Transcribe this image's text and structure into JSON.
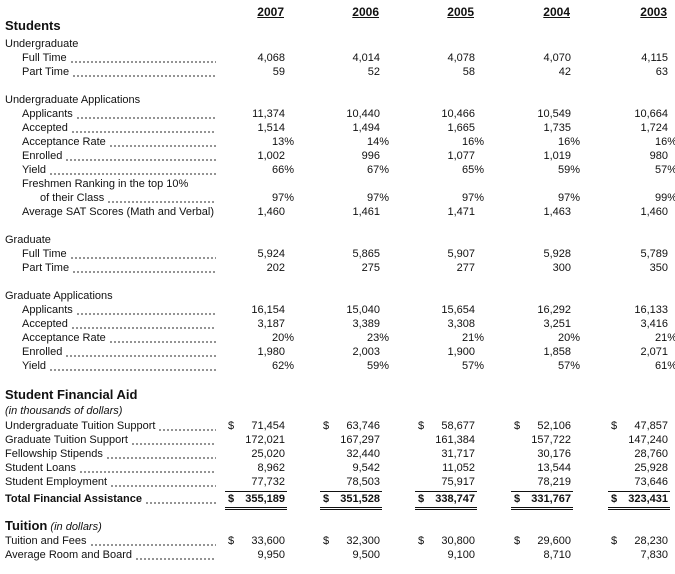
{
  "years": [
    "2007",
    "2006",
    "2005",
    "2004",
    "2003"
  ],
  "sections": [
    {
      "title": "Students",
      "groups": [
        {
          "title": "Undergraduate",
          "rows": [
            {
              "label": "Full Time",
              "values": [
                "4,068",
                "4,014",
                "4,078",
                "4,070",
                "4,115"
              ]
            },
            {
              "label": "Part Time",
              "values": [
                "59",
                "52",
                "58",
                "42",
                "63"
              ]
            }
          ]
        },
        {
          "title": "Undergraduate Applications",
          "rows": [
            {
              "label": "Applicants",
              "values": [
                "11,374",
                "10,440",
                "10,466",
                "10,549",
                "10,664"
              ]
            },
            {
              "label": "Accepted",
              "values": [
                "1,514",
                "1,494",
                "1,665",
                "1,735",
                "1,724"
              ]
            },
            {
              "label": "Acceptance Rate",
              "values": [
                "13%",
                "14%",
                "16%",
                "16%",
                "16%"
              ]
            },
            {
              "label": "Enrolled",
              "values": [
                "1,002",
                "996",
                "1,077",
                "1,019",
                "980"
              ]
            },
            {
              "label": "Yield",
              "values": [
                "66%",
                "67%",
                "65%",
                "59%",
                "57%"
              ]
            },
            {
              "label": "Freshmen Ranking in the top 10%",
              "sublabel": "of their Class",
              "values": [
                "97%",
                "97%",
                "97%",
                "97%",
                "99%"
              ]
            },
            {
              "label": "Average SAT Scores (Math and Verbal)",
              "values": [
                "1,460",
                "1,461",
                "1,471",
                "1,463",
                "1,460"
              ]
            }
          ]
        },
        {
          "title": "Graduate",
          "rows": [
            {
              "label": "Full Time",
              "values": [
                "5,924",
                "5,865",
                "5,907",
                "5,928",
                "5,789"
              ]
            },
            {
              "label": "Part Time",
              "values": [
                "202",
                "275",
                "277",
                "300",
                "350"
              ]
            }
          ]
        },
        {
          "title": "Graduate Applications",
          "rows": [
            {
              "label": "Applicants",
              "values": [
                "16,154",
                "15,040",
                "15,654",
                "16,292",
                "16,133"
              ]
            },
            {
              "label": "Accepted",
              "values": [
                "3,187",
                "3,389",
                "3,308",
                "3,251",
                "3,416"
              ]
            },
            {
              "label": "Acceptance Rate",
              "values": [
                "20%",
                "23%",
                "21%",
                "20%",
                "21%"
              ]
            },
            {
              "label": "Enrolled",
              "values": [
                "1,980",
                "2,003",
                "1,900",
                "1,858",
                "2,071"
              ]
            },
            {
              "label": "Yield",
              "values": [
                "62%",
                "59%",
                "57%",
                "57%",
                "61%"
              ]
            }
          ]
        }
      ]
    },
    {
      "title": "Student Financial Aid",
      "subtitle": "(in thousands of dollars)",
      "rows": [
        {
          "label": "Undergraduate Tuition Support",
          "currency": "$",
          "values": [
            "71,454",
            "63,746",
            "58,677",
            "52,106",
            "47,857"
          ]
        },
        {
          "label": "Graduate Tuition Support",
          "values": [
            "172,021",
            "167,297",
            "161,384",
            "157,722",
            "147,240"
          ]
        },
        {
          "label": "Fellowship Stipends",
          "values": [
            "25,020",
            "32,440",
            "31,717",
            "30,176",
            "28,760"
          ]
        },
        {
          "label": "Student Loans",
          "values": [
            "8,962",
            "9,542",
            "11,052",
            "13,544",
            "25,928"
          ]
        },
        {
          "label": "Student Employment",
          "values": [
            "77,732",
            "78,503",
            "75,917",
            "78,219",
            "73,646"
          ]
        }
      ],
      "total": {
        "label": "Total Financial Assistance",
        "currency": "$",
        "values": [
          "355,189",
          "351,528",
          "338,747",
          "331,767",
          "323,431"
        ]
      }
    },
    {
      "title": "Tuition",
      "subtitle": "(in dollars)",
      "rows": [
        {
          "label": "Tuition and Fees",
          "currency": "$",
          "values": [
            "33,600",
            "32,300",
            "30,800",
            "29,600",
            "28,230"
          ]
        },
        {
          "label": "Average Room and Board",
          "values": [
            "9,950",
            "9,500",
            "9,100",
            "8,710",
            "7,830"
          ]
        }
      ]
    }
  ]
}
